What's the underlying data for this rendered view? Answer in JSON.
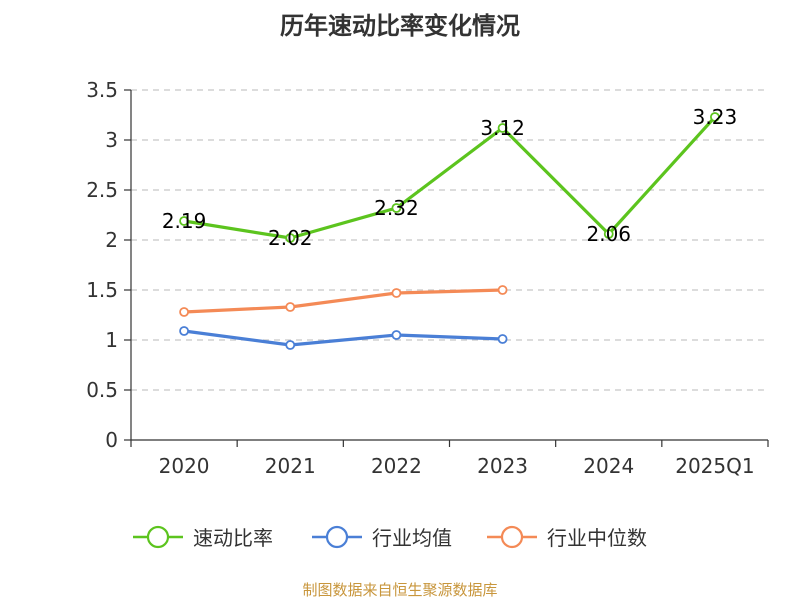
{
  "chart_data": {
    "type": "line",
    "title": "历年速动比率变化情况",
    "categories": [
      "2020",
      "2021",
      "2022",
      "2023",
      "2024",
      "2025Q1"
    ],
    "ylim": [
      0,
      3.5
    ],
    "yticks": [
      "0",
      "0.5",
      "1",
      "1.5",
      "2",
      "2.5",
      "3",
      "3.5"
    ],
    "grid": true,
    "legend_position": "bottom",
    "series": [
      {
        "name": "速动比率",
        "color": "#5cc41e",
        "values": [
          2.19,
          2.02,
          2.32,
          3.12,
          2.06,
          3.23
        ],
        "labels": [
          "2.19",
          "2.02",
          "2.32",
          "3.12",
          "2.06",
          "3.23"
        ]
      },
      {
        "name": "行业均值",
        "color": "#4a7fd6",
        "values": [
          1.09,
          0.95,
          1.05,
          1.01,
          null,
          null
        ]
      },
      {
        "name": "行业中位数",
        "color": "#f48a56",
        "values": [
          1.28,
          1.33,
          1.47,
          1.5,
          null,
          null
        ]
      }
    ]
  },
  "footer": {
    "source": "制图数据来自恒生聚源数据库",
    "color": "#c8963c"
  }
}
